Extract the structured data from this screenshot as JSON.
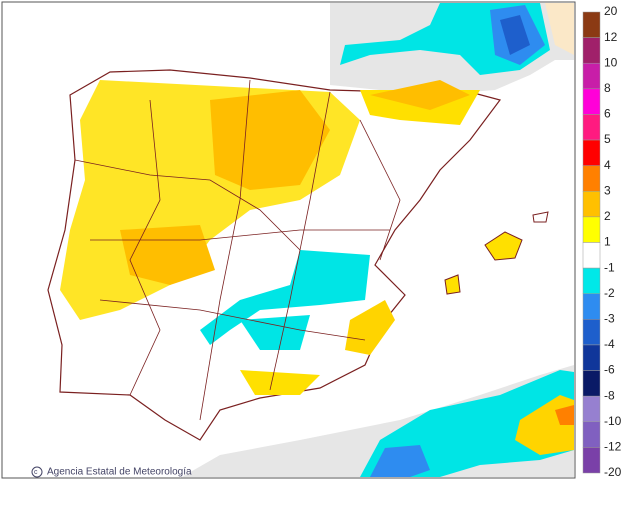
{
  "legend": {
    "labels": [
      20,
      12,
      10,
      8,
      6,
      5,
      4,
      3,
      2,
      1,
      -1,
      -2,
      -3,
      -4,
      -6,
      -8,
      -10,
      -12,
      -20
    ],
    "colors": [
      "#8b3a14",
      "#a0206a",
      "#c81ea8",
      "#ff00d8",
      "#ff1a80",
      "#ff0000",
      "#ff8000",
      "#ffc000",
      "#ffff00",
      "#ffffff",
      "#00e8e8",
      "#2e8cf0",
      "#1e5fcc",
      "#10369a",
      "#0a1a66",
      "#9680d0",
      "#8060c0",
      "#7a40a8"
    ]
  },
  "credit": "Agencia Estatal de Meteorología"
}
